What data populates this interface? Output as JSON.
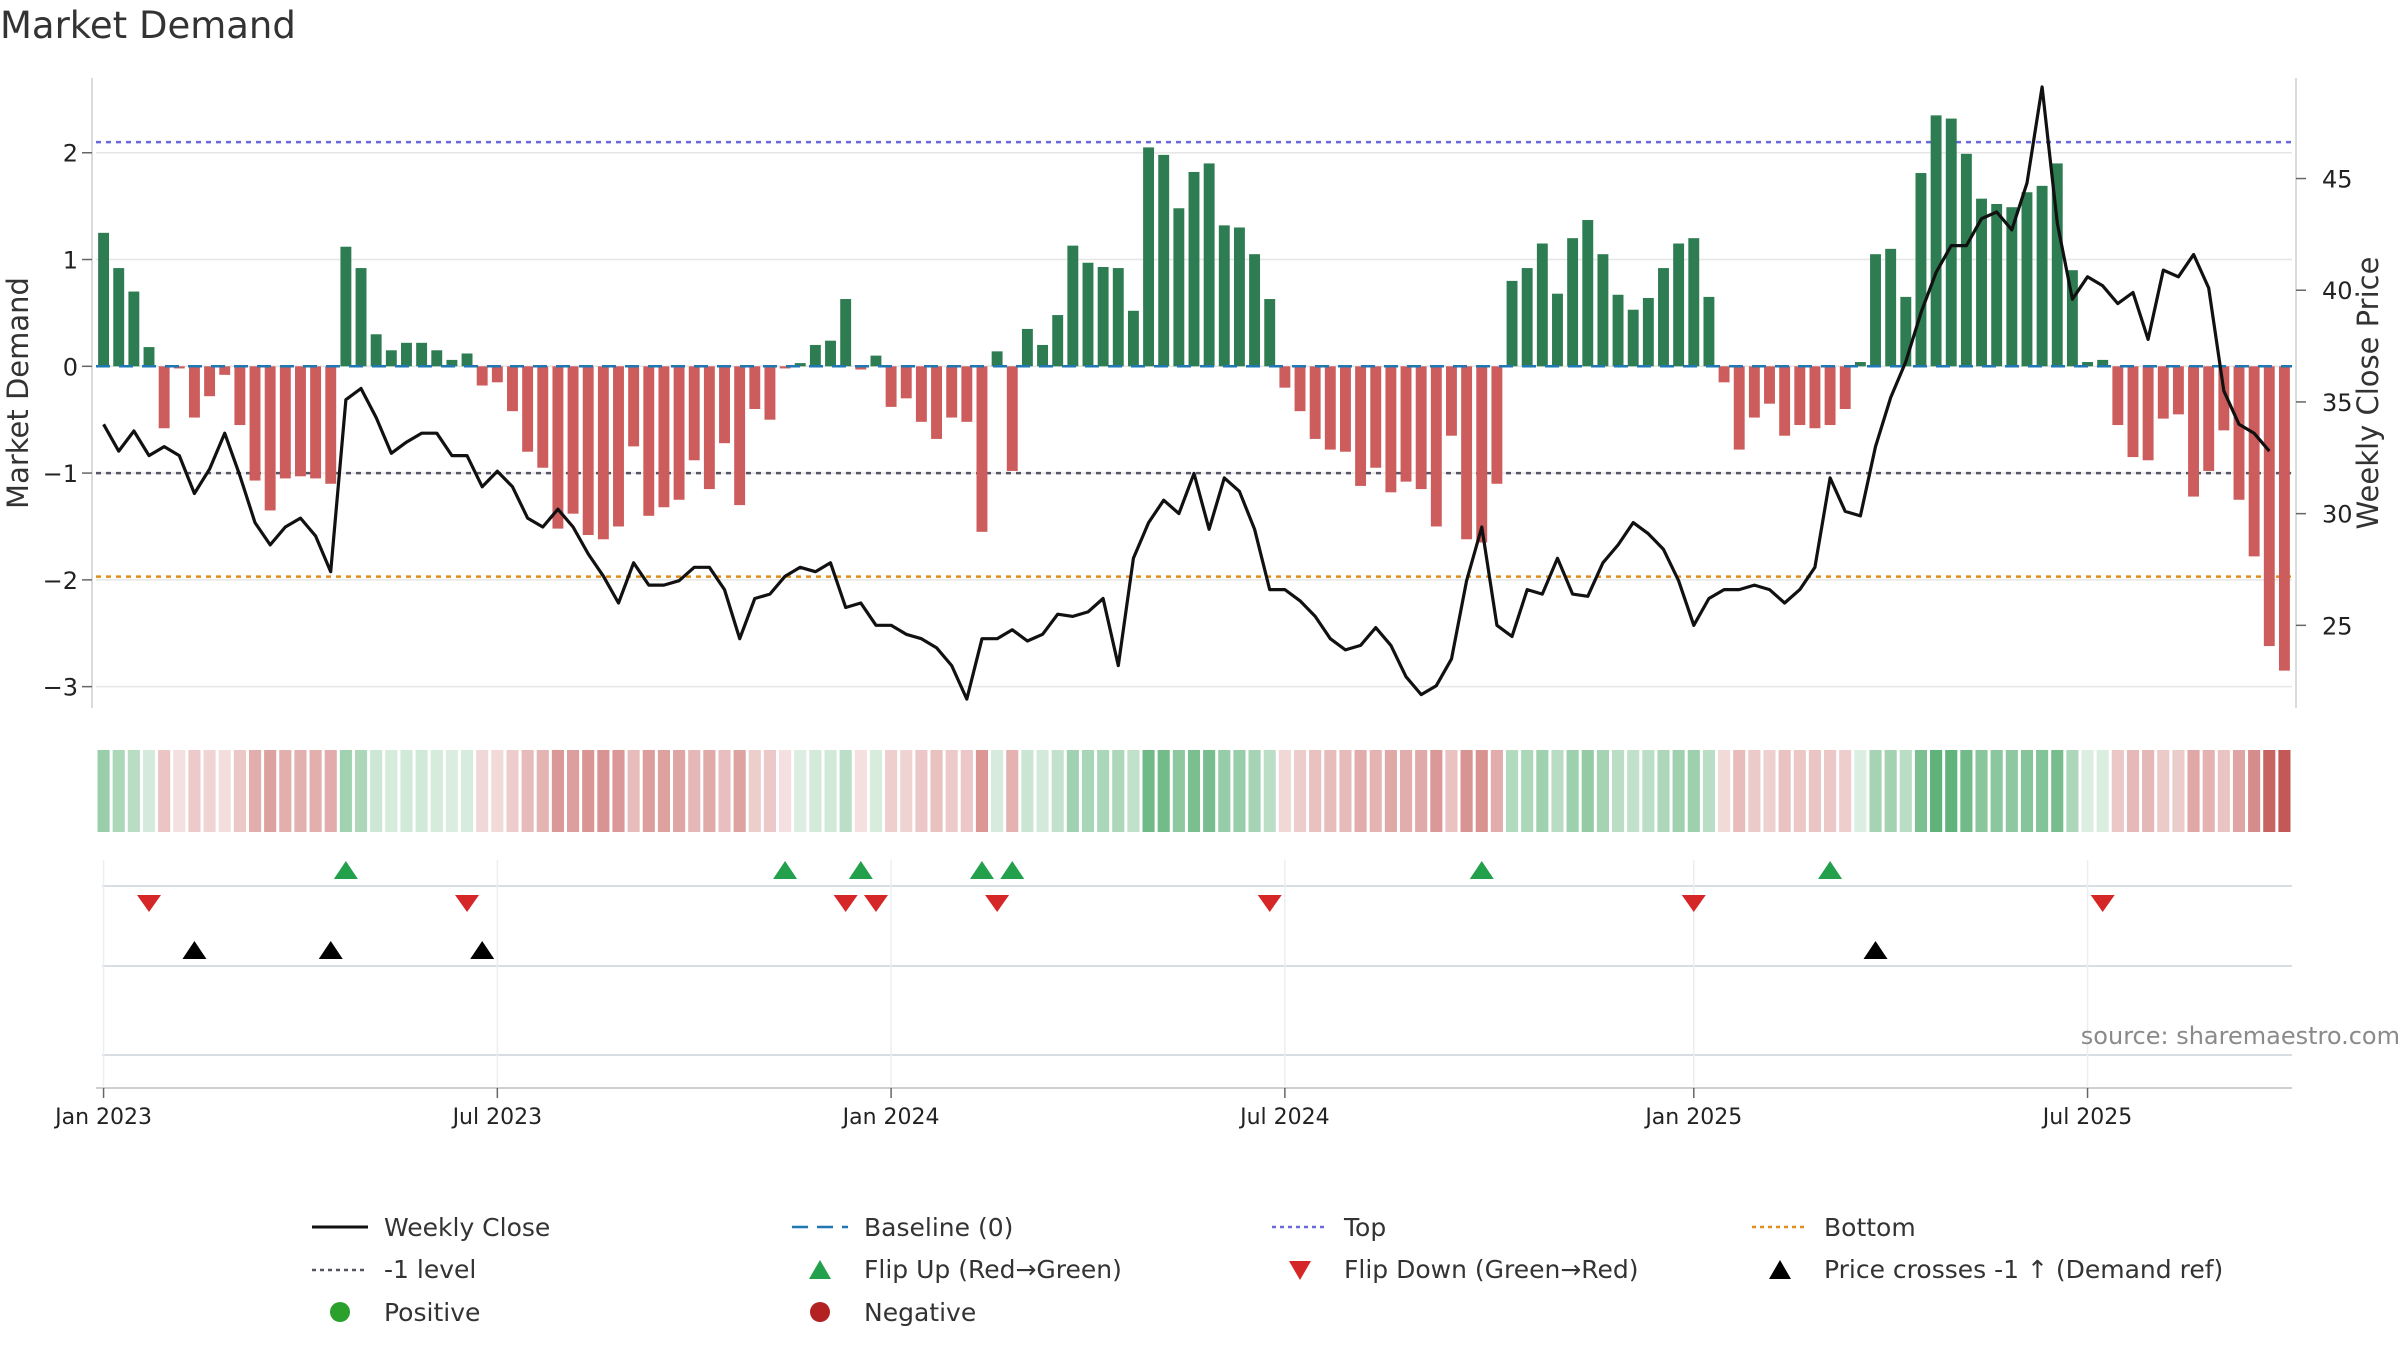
{
  "chart_data": {
    "type": "bar",
    "title": "Market Demand",
    "ylabel_left": "Market Demand",
    "ylabel_right": "Weekly Close Price",
    "ylim_left": [
      -3.2,
      2.7
    ],
    "ylim_right": [
      21.3,
      49.5
    ],
    "yticks_left": [
      2,
      1,
      0,
      -1,
      -2,
      -3
    ],
    "ytick_labels_left": [
      "2",
      "1",
      "0",
      "−1",
      "−2",
      "−3"
    ],
    "yticks_right": [
      45,
      40,
      35,
      30,
      25
    ],
    "ytick_labels_right": [
      "45",
      "40",
      "35",
      "30",
      "25"
    ],
    "xticks": [
      {
        "week": 0,
        "label": "Jan 2023"
      },
      {
        "week": 26,
        "label": "Jul 2023"
      },
      {
        "week": 52,
        "label": "Jan 2024"
      },
      {
        "week": 78,
        "label": "Jul 2024"
      },
      {
        "week": 105,
        "label": "Jan 2025"
      },
      {
        "week": 131,
        "label": "Jul 2025"
      }
    ],
    "reference_lines": {
      "top": 2.1,
      "bottom": -1.97,
      "minus_one": -1,
      "baseline": 0
    },
    "demand": [
      1.25,
      0.92,
      0.7,
      0.18,
      -0.58,
      -0.02,
      -0.48,
      -0.28,
      -0.08,
      -0.55,
      -1.07,
      -1.35,
      -1.05,
      -1.03,
      -1.05,
      -1.1,
      1.12,
      0.92,
      0.3,
      0.15,
      0.22,
      0.22,
      0.15,
      0.06,
      0.12,
      -0.18,
      -0.15,
      -0.42,
      -0.8,
      -0.95,
      -1.52,
      -1.38,
      -1.58,
      -1.62,
      -1.5,
      -0.75,
      -1.4,
      -1.32,
      -1.25,
      -0.88,
      -1.15,
      -0.72,
      -1.3,
      -0.4,
      -0.5,
      -0.02,
      0.03,
      0.2,
      0.24,
      0.63,
      -0.03,
      0.1,
      -0.38,
      -0.3,
      -0.52,
      -0.68,
      -0.48,
      -0.52,
      -1.55,
      0.14,
      -0.98,
      0.35,
      0.2,
      0.48,
      1.13,
      0.97,
      0.93,
      0.92,
      0.52,
      2.05,
      1.98,
      1.48,
      1.82,
      1.9,
      1.32,
      1.3,
      1.05,
      0.63,
      -0.2,
      -0.42,
      -0.68,
      -0.78,
      -0.8,
      -1.12,
      -0.95,
      -1.18,
      -1.08,
      -1.15,
      -1.5,
      -0.65,
      -1.62,
      -1.65,
      -1.1,
      0.8,
      0.92,
      1.15,
      0.68,
      1.2,
      1.37,
      1.05,
      0.67,
      0.53,
      0.64,
      0.92,
      1.15,
      1.2,
      0.65,
      -0.15,
      -0.78,
      -0.48,
      -0.35,
      -0.65,
      -0.55,
      -0.58,
      -0.55,
      -0.4,
      0.04,
      1.05,
      1.1,
      0.65,
      1.81,
      2.35,
      2.32,
      1.99,
      1.57,
      1.52,
      1.49,
      1.63,
      1.69,
      1.9,
      0.9,
      0.04,
      0.06,
      -0.55,
      -0.85,
      -0.88,
      -0.49,
      -0.45,
      -1.22,
      -0.98,
      -0.6,
      -1.25,
      -1.78,
      -2.62,
      -2.85
    ],
    "price": [
      34.0,
      32.8,
      33.7,
      32.6,
      33.0,
      32.6,
      30.9,
      32.0,
      33.6,
      31.7,
      29.6,
      28.6,
      29.4,
      29.8,
      29.0,
      27.4,
      35.1,
      35.6,
      34.3,
      32.7,
      33.2,
      33.6,
      33.6,
      32.6,
      32.6,
      31.2,
      31.9,
      31.2,
      29.8,
      29.4,
      30.2,
      29.4,
      28.2,
      27.2,
      26.0,
      27.8,
      26.8,
      26.8,
      27.0,
      27.6,
      27.6,
      26.6,
      24.4,
      26.2,
      26.4,
      27.2,
      27.6,
      27.4,
      27.8,
      25.8,
      26.0,
      25.0,
      25.0,
      24.6,
      24.4,
      24.0,
      23.2,
      21.7,
      24.4,
      24.4,
      24.8,
      24.3,
      24.6,
      25.5,
      25.4,
      25.6,
      26.2,
      23.2,
      28.0,
      29.6,
      30.6,
      30.0,
      31.8,
      29.3,
      31.6,
      31.0,
      29.3,
      26.6,
      26.6,
      26.1,
      25.4,
      24.4,
      23.9,
      24.1,
      24.9,
      24.1,
      22.7,
      21.9,
      22.3,
      23.5,
      27.0,
      29.4,
      25.0,
      24.5,
      26.6,
      26.4,
      28.0,
      26.4,
      26.3,
      27.8,
      28.6,
      29.6,
      29.1,
      28.4,
      27.0,
      25.0,
      26.2,
      26.6,
      26.6,
      26.8,
      26.6,
      26.0,
      26.6,
      27.6,
      31.6,
      30.1,
      29.9,
      33.0,
      35.2,
      36.8,
      39.0,
      40.8,
      42.0,
      42.0,
      43.2,
      43.5,
      42.7,
      44.8,
      49.1,
      43.0,
      39.6,
      40.6,
      40.2,
      39.4,
      39.9,
      37.8,
      40.9,
      40.6,
      41.6,
      40.1,
      35.5,
      34.0,
      33.6,
      32.8
    ],
    "flip_up_weeks": [
      16,
      45,
      50,
      58,
      60,
      91,
      114
    ],
    "flip_down_weeks": [
      3,
      24,
      49,
      51,
      59,
      77,
      105,
      132
    ],
    "price_cross_weeks": [
      6,
      15,
      25,
      117
    ],
    "legend": [
      {
        "key": "weekly_close",
        "label": "Weekly Close"
      },
      {
        "key": "baseline",
        "label": "Baseline (0)"
      },
      {
        "key": "top",
        "label": "Top"
      },
      {
        "key": "bottom",
        "label": "Bottom"
      },
      {
        "key": "minus_one",
        "label": "-1 level"
      },
      {
        "key": "flip_up",
        "label": "Flip Up (Red→Green)"
      },
      {
        "key": "flip_down",
        "label": "Flip Down (Green→Red)"
      },
      {
        "key": "price_cross",
        "label": "Price crosses -1 ↑ (Demand ref)"
      },
      {
        "key": "positive",
        "label": "Positive"
      },
      {
        "key": "negative",
        "label": "Negative"
      }
    ],
    "source_note": "source: sharemaestro.com"
  },
  "colors": {
    "positive_bar": "#2e7d52",
    "negative_bar": "#cd5c5c",
    "price_line": "#111111",
    "baseline": "#1f77b4",
    "top": "#6a6ad8",
    "bottom": "#e08e1a",
    "minus_one": "#555566",
    "flip_up": "#22a04b",
    "flip_down": "#d62728",
    "price_cross": "#000000",
    "positive_dot": "#2ca02c",
    "negative_dot": "#b22222",
    "grid": "#e6e6e6",
    "axis": "#cfcfcf"
  }
}
